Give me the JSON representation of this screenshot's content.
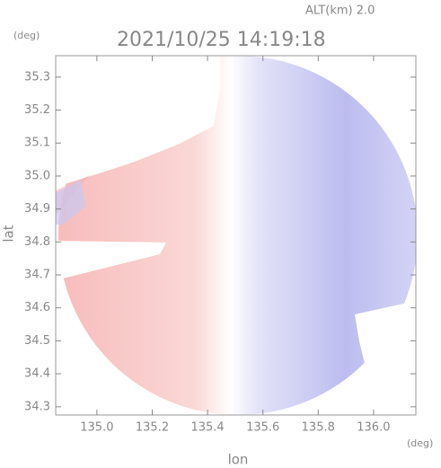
{
  "chart_data": {
    "type": "map",
    "title": "2021/10/25 14:19:18",
    "annotation": "ALT(km) 2.0",
    "xlabel": "lon",
    "ylabel": "lat",
    "xunit": "(deg)",
    "yunit": "(deg)",
    "xlim": [
      134.851,
      136.153
    ],
    "ylim": [
      34.275,
      35.365
    ],
    "xticks": [
      {
        "value": 135,
        "label": "135.0"
      },
      135.2,
      135.4,
      135.6,
      135.8,
      {
        "value": 136,
        "label": "136.0"
      }
    ],
    "yticks": [
      34.3,
      34.4,
      34.5,
      34.6,
      34.7,
      34.8,
      34.9,
      {
        "value": 35,
        "label": "35.0"
      },
      35.1,
      35.2,
      35.3
    ]
  }
}
